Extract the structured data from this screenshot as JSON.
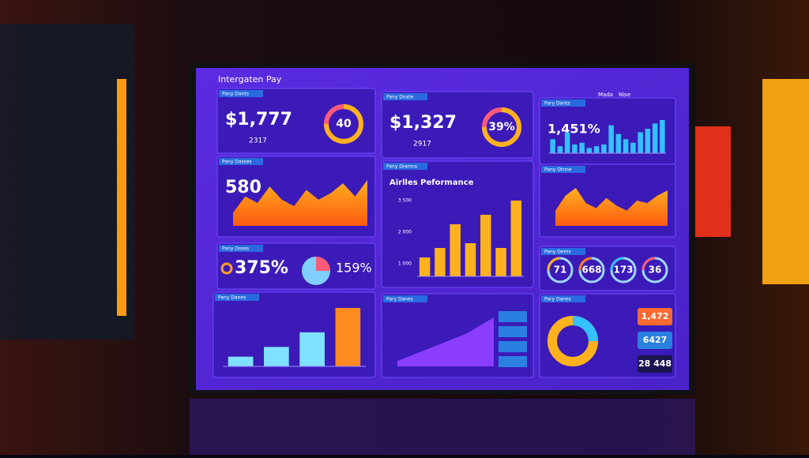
{
  "header": {
    "title": "Intergaten Pay",
    "nav": [
      "Mada",
      "Nise"
    ]
  },
  "panels": [
    {
      "title": "Pany Dants",
      "value": "$1,777",
      "sub": "2317",
      "gauge": "40"
    },
    {
      "title": "Pany Dnate",
      "value": "$1,327",
      "sub": "2917",
      "gauge": "39%"
    },
    {
      "title": "Pary Dants",
      "value": "1,451%",
      "bars": [
        40,
        20,
        60,
        25,
        30,
        15,
        20,
        25,
        80,
        55,
        40,
        30,
        60,
        70,
        85,
        95
      ]
    },
    {
      "title": "Pany Dasses",
      "value": "580",
      "area": [
        20,
        45,
        35,
        60,
        40,
        30,
        55,
        40,
        50,
        65,
        45,
        70
      ]
    },
    {
      "title": "Pany Diamns",
      "value": "Airlles Peformance",
      "yticks": [
        "3 500",
        "2 000",
        "1 000"
      ],
      "bars": [
        20,
        30,
        55,
        35,
        65,
        30,
        80
      ]
    },
    {
      "title": "Pany Dtnne",
      "area": [
        30,
        60,
        75,
        45,
        35,
        55,
        40,
        30,
        50,
        45,
        60,
        70
      ]
    },
    {
      "title": "Pany Dsses",
      "value": "375%",
      "sub": "159%"
    },
    {
      "title": "Pany Dems",
      "gauges": [
        "71",
        "668",
        "173",
        "36"
      ]
    },
    {
      "title": "Pany Danes",
      "bars": [
        10,
        20,
        35,
        60
      ]
    },
    {
      "title": "Pary Danes",
      "area": [
        10,
        20,
        30,
        40,
        50,
        60,
        75,
        90
      ]
    },
    {
      "title": "Pary Danes",
      "values": [
        "1,472",
        "6427",
        "28 448"
      ]
    }
  ]
}
